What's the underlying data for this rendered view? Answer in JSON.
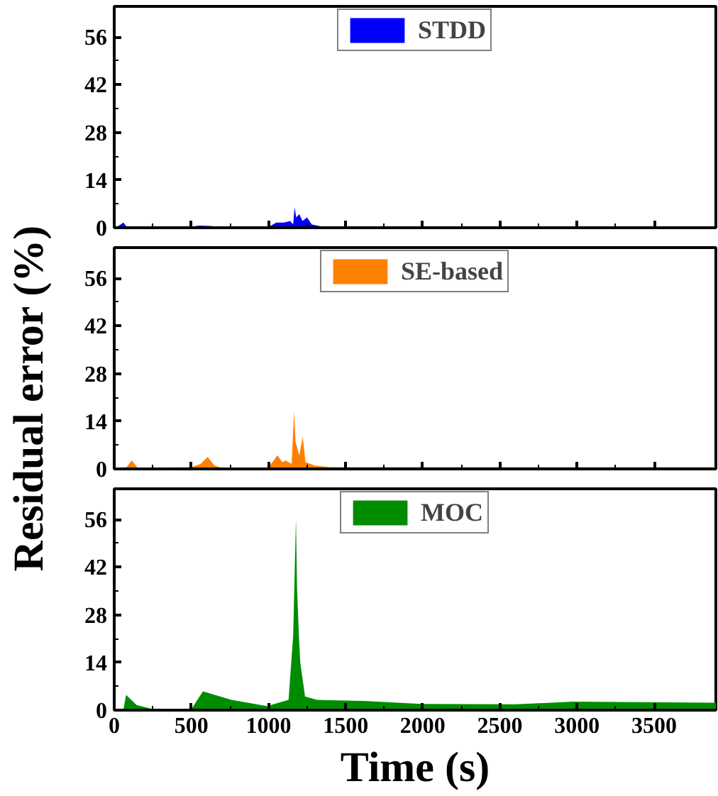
{
  "chart_data": [
    {
      "type": "area",
      "tick_labels": "y",
      "legend": "top",
      "xlim": [
        0,
        3900
      ],
      "xticks": [
        0,
        500,
        1000,
        1500,
        2000,
        2500,
        3000,
        3500
      ],
      "ylim": [
        0,
        65
      ],
      "yticks": [
        0,
        14,
        28,
        42,
        56
      ],
      "x": [
        0,
        20,
        60,
        80,
        150,
        500,
        550,
        620,
        700,
        1000,
        1050,
        1100,
        1140,
        1160,
        1169,
        1180,
        1200,
        1220,
        1250,
        1280,
        1300,
        1350,
        2000,
        3000,
        3900
      ],
      "series": [
        {
          "name": "STDD",
          "color": "#0000ff",
          "values": [
            0.2,
            0.3,
            1.5,
            0.3,
            0.2,
            0.3,
            0.6,
            0.5,
            0.2,
            0.2,
            1.5,
            1.5,
            2.0,
            1.0,
            6,
            3,
            4,
            2,
            3,
            1,
            0.8,
            0.3,
            0.3,
            0.3,
            0.3
          ]
        }
      ]
    },
    {
      "type": "area",
      "tick_labels": "y",
      "legend": "top",
      "ylabel": "Residual error (%)",
      "xlim": [
        0,
        3900
      ],
      "xticks": [
        0,
        500,
        1000,
        1500,
        2000,
        2500,
        3000,
        3500
      ],
      "ylim": [
        0,
        65
      ],
      "yticks": [
        0,
        14,
        28,
        42,
        56
      ],
      "x": [
        0,
        80,
        114,
        150,
        500,
        560,
        606,
        650,
        700,
        1000,
        1058,
        1090,
        1110,
        1150,
        1166,
        1175,
        1200,
        1222,
        1240,
        1270,
        1300,
        1400,
        2000,
        3000,
        3900
      ],
      "series": [
        {
          "name": "SE-based",
          "color": "#ff8000",
          "values": [
            0.3,
            0.5,
            2.5,
            0.4,
            0.5,
            1.5,
            3.5,
            1.0,
            0.3,
            0.4,
            4,
            2,
            2.5,
            1.5,
            17,
            8,
            4,
            9.5,
            2,
            1.5,
            1,
            0.5,
            0.5,
            0.5,
            0.5
          ]
        }
      ]
    },
    {
      "type": "area",
      "legend": "top",
      "xlabel": "Time (s)",
      "xlim": [
        0,
        3900
      ],
      "xticks": [
        0,
        500,
        1000,
        1500,
        2000,
        2500,
        3000,
        3500
      ],
      "ylim": [
        0,
        65
      ],
      "yticks": [
        0,
        14,
        28,
        42,
        56
      ],
      "x": [
        0,
        60,
        77,
        145,
        250,
        500,
        575,
        760,
        990,
        1130,
        1160,
        1178,
        1185,
        1197,
        1206,
        1237,
        1314,
        1620,
        1990,
        2600,
        2975,
        3880,
        3900
      ],
      "series": [
        {
          "name": "MOC",
          "color": "#008c00",
          "values": [
            0.3,
            0.3,
            4.5,
            1.5,
            0.3,
            0.3,
            5.5,
            3,
            1.2,
            3,
            22,
            56,
            36,
            22,
            14,
            4,
            3,
            2.7,
            1.8,
            1.7,
            2.5,
            2.2,
            2.2
          ]
        }
      ]
    }
  ]
}
